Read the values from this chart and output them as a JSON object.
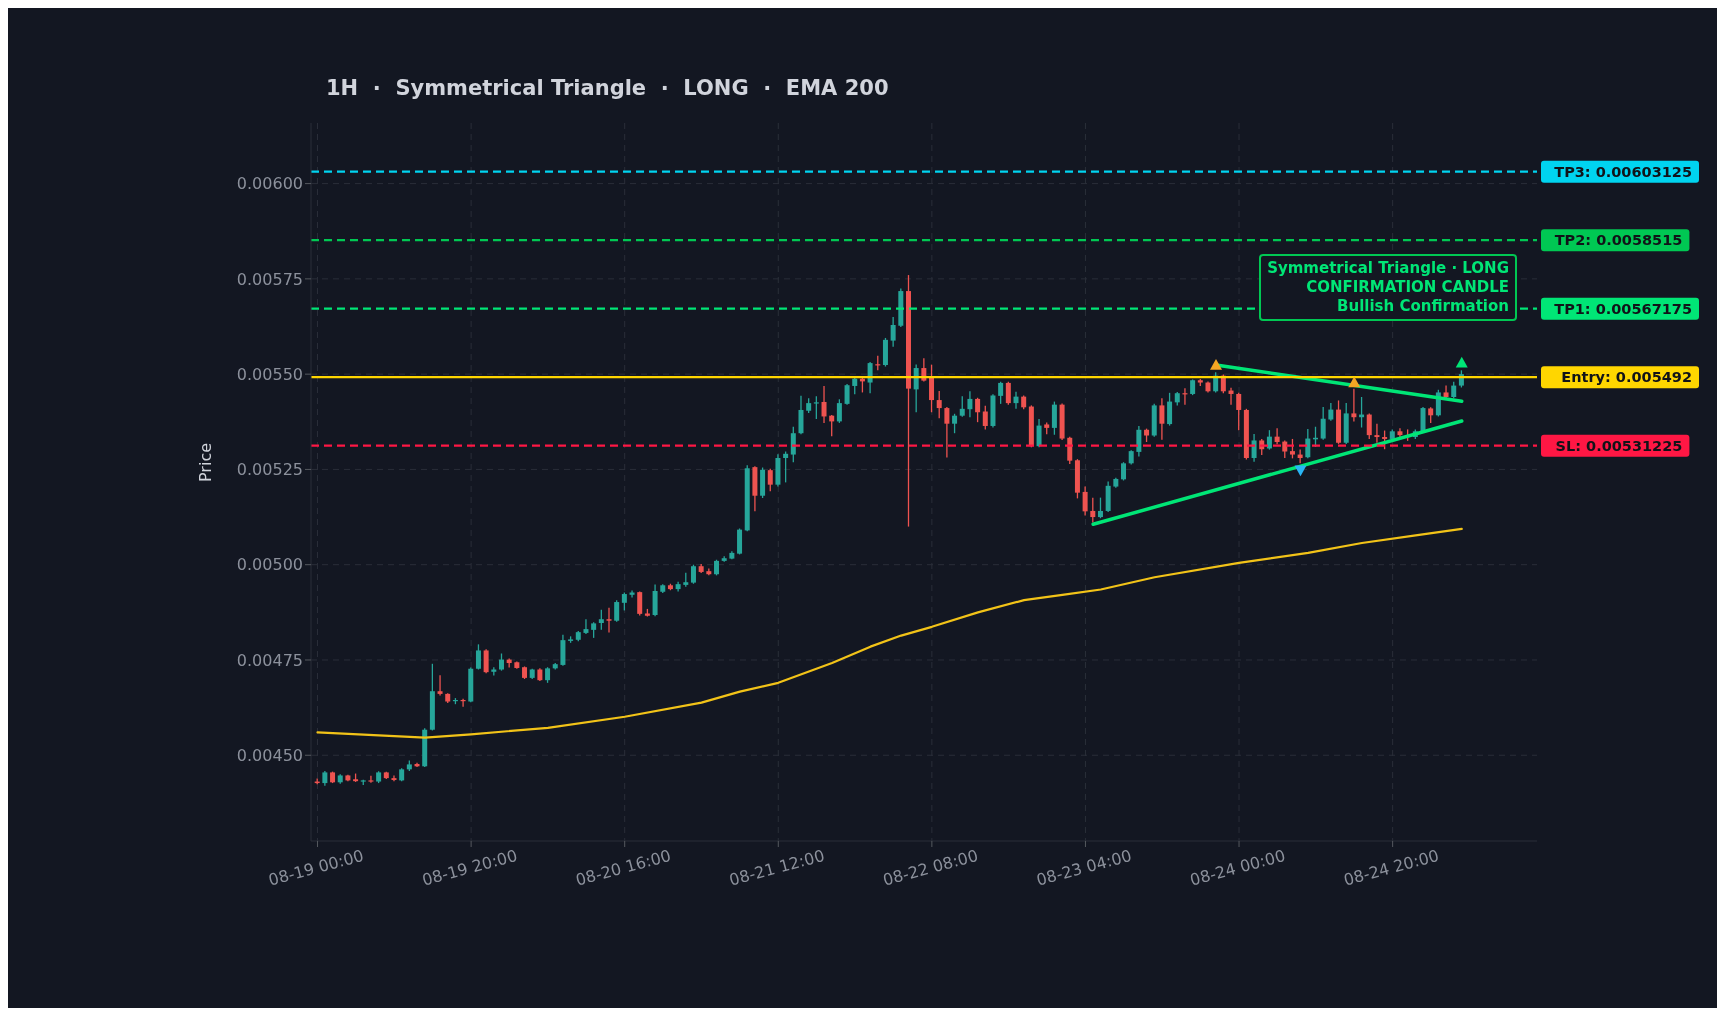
{
  "chart_data": {
    "type": "candlestick",
    "title": "1H  ·  Symmetrical Triangle  ·  LONG  ·  EMA 200",
    "ylabel": "Price",
    "x": [
      "--08-19T00:00",
      "--08-19T01:00",
      "--08-19T02:00",
      "--08-19T03:00",
      "--08-19T04:00",
      "--08-19T05:00",
      "--08-19T06:00",
      "--08-19T07:00",
      "--08-19T08:00",
      "--08-19T09:00",
      "--08-19T10:00",
      "--08-19T11:00",
      "--08-19T12:00",
      "--08-19T13:00",
      "--08-19T14:00",
      "--08-19T15:00",
      "--08-19T16:00",
      "--08-19T17:00",
      "--08-19T18:00",
      "--08-19T19:00",
      "--08-19T20:00",
      "--08-19T21:00",
      "--08-19T22:00",
      "--08-19T23:00",
      "--08-20T00:00",
      "--08-20T01:00",
      "--08-20T02:00",
      "--08-20T03:00",
      "--08-20T04:00",
      "--08-20T05:00",
      "--08-20T06:00",
      "--08-20T07:00",
      "--08-20T08:00",
      "--08-20T09:00",
      "--08-20T10:00",
      "--08-20T11:00",
      "--08-20T12:00",
      "--08-20T13:00",
      "--08-20T14:00",
      "--08-20T15:00",
      "--08-20T16:00",
      "--08-20T17:00",
      "--08-20T18:00",
      "--08-20T19:00",
      "--08-20T20:00",
      "--08-20T21:00",
      "--08-20T22:00",
      "--08-20T23:00",
      "--08-21T00:00",
      "--08-21T01:00",
      "--08-21T02:00",
      "--08-21T03:00",
      "--08-21T04:00",
      "--08-21T05:00",
      "--08-21T06:00",
      "--08-21T07:00",
      "--08-21T08:00",
      "--08-21T09:00",
      "--08-21T10:00",
      "--08-21T11:00",
      "--08-21T12:00",
      "--08-21T13:00",
      "--08-21T14:00",
      "--08-21T15:00",
      "--08-21T16:00",
      "--08-21T17:00",
      "--08-21T18:00",
      "--08-21T19:00",
      "--08-21T20:00",
      "--08-21T21:00",
      "--08-21T22:00",
      "--08-21T23:00",
      "--08-22T00:00",
      "--08-22T01:00",
      "--08-22T02:00",
      "--08-22T03:00",
      "--08-22T04:00",
      "--08-22T05:00",
      "--08-22T06:00",
      "--08-22T07:00",
      "--08-22T08:00",
      "--08-22T09:00",
      "--08-22T10:00",
      "--08-22T11:00",
      "--08-22T12:00",
      "--08-22T13:00",
      "--08-22T14:00",
      "--08-22T15:00",
      "--08-22T16:00",
      "--08-22T17:00",
      "--08-22T18:00",
      "--08-22T19:00",
      "--08-22T20:00",
      "--08-22T21:00",
      "--08-22T22:00",
      "--08-22T23:00",
      "--08-23T00:00",
      "--08-23T01:00",
      "--08-23T02:00",
      "--08-23T03:00",
      "--08-23T04:00",
      "--08-23T05:00",
      "--08-23T06:00",
      "--08-23T07:00",
      "--08-23T08:00",
      "--08-23T09:00",
      "--08-23T10:00",
      "--08-23T11:00",
      "--08-23T12:00",
      "--08-23T13:00",
      "--08-23T14:00",
      "--08-23T15:00",
      "--08-23T16:00",
      "--08-23T17:00",
      "--08-23T18:00",
      "--08-23T19:00",
      "--08-23T20:00",
      "--08-23T21:00",
      "--08-23T22:00",
      "--08-23T23:00",
      "--08-24T00:00",
      "--08-24T01:00",
      "--08-24T02:00",
      "--08-24T03:00",
      "--08-24T04:00",
      "--08-24T05:00",
      "--08-24T06:00",
      "--08-24T07:00",
      "--08-24T08:00",
      "--08-24T09:00",
      "--08-24T10:00",
      "--08-24T11:00",
      "--08-24T12:00",
      "--08-24T13:00",
      "--08-24T14:00",
      "--08-24T15:00",
      "--08-24T16:00",
      "--08-24T17:00",
      "--08-24T18:00",
      "--08-24T19:00",
      "--08-24T20:00",
      "--08-24T21:00",
      "--08-24T22:00",
      "--08-24T23:00",
      "--08-25T00:00",
      "--08-25T01:00",
      "--08-25T02:00",
      "--08-25T03:00",
      "--08-25T04:00",
      "--08-25T05:00"
    ],
    "ohlc": [
      [
        0.004431,
        0.004439,
        0.004424,
        0.004427
      ],
      [
        0.004427,
        0.004459,
        0.00442,
        0.004455
      ],
      [
        0.004455,
        0.004457,
        0.004427,
        0.004429
      ],
      [
        0.004429,
        0.00445,
        0.004425,
        0.004447
      ],
      [
        0.004447,
        0.004449,
        0.004432,
        0.004434
      ],
      [
        0.004437,
        0.004452,
        0.00443,
        0.004432
      ],
      [
        0.004432,
        0.004436,
        0.004422,
        0.004434
      ],
      [
        0.004434,
        0.004446,
        0.004428,
        0.004431
      ],
      [
        0.004431,
        0.004458,
        0.004427,
        0.004455
      ],
      [
        0.004455,
        0.004457,
        0.004438,
        0.00444
      ],
      [
        0.00444,
        0.004447,
        0.004432,
        0.004435
      ],
      [
        0.004434,
        0.004466,
        0.004432,
        0.004463
      ],
      [
        0.004463,
        0.004486,
        0.004459,
        0.004476
      ],
      [
        0.004477,
        0.00448,
        0.004469,
        0.004471
      ],
      [
        0.004471,
        0.004571,
        0.004469,
        0.004567
      ],
      [
        0.004567,
        0.00474,
        0.004565,
        0.004668
      ],
      [
        0.004668,
        0.00471,
        0.004657,
        0.004661
      ],
      [
        0.004661,
        0.004663,
        0.004637,
        0.004641
      ],
      [
        0.004643,
        0.00465,
        0.004634,
        0.004645
      ],
      [
        0.004645,
        0.004648,
        0.004627,
        0.004642
      ],
      [
        0.004641,
        0.00473,
        0.004639,
        0.004727
      ],
      [
        0.004727,
        0.004791,
        0.004725,
        0.004775
      ],
      [
        0.004775,
        0.004778,
        0.004715,
        0.004718
      ],
      [
        0.004719,
        0.004731,
        0.004709,
        0.004725
      ],
      [
        0.004725,
        0.004767,
        0.004722,
        0.004751
      ],
      [
        0.004751,
        0.004754,
        0.00473,
        0.004742
      ],
      [
        0.004744,
        0.004746,
        0.004727,
        0.004729
      ],
      [
        0.004731,
        0.004733,
        0.0047,
        0.004703
      ],
      [
        0.004703,
        0.004727,
        0.0047,
        0.004725
      ],
      [
        0.004725,
        0.004728,
        0.004695,
        0.004697
      ],
      [
        0.004697,
        0.004731,
        0.00469,
        0.004728
      ],
      [
        0.004728,
        0.004742,
        0.004725,
        0.004739
      ],
      [
        0.004737,
        0.004816,
        0.004735,
        0.004802
      ],
      [
        0.0048,
        0.004812,
        0.004795,
        0.004804
      ],
      [
        0.004803,
        0.004826,
        0.004799,
        0.004823
      ],
      [
        0.004821,
        0.004857,
        0.004818,
        0.004831
      ],
      [
        0.004829,
        0.004849,
        0.004808,
        0.004846
      ],
      [
        0.004847,
        0.004882,
        0.004829,
        0.004857
      ],
      [
        0.004857,
        0.004887,
        0.004822,
        0.004853
      ],
      [
        0.004853,
        0.004907,
        0.00485,
        0.004902
      ],
      [
        0.0049,
        0.004927,
        0.00488,
        0.004923
      ],
      [
        0.004921,
        0.004932,
        0.004914,
        0.004927
      ],
      [
        0.004928,
        0.00493,
        0.004867,
        0.004871
      ],
      [
        0.004872,
        0.004884,
        0.004864,
        0.004866
      ],
      [
        0.004868,
        0.004948,
        0.004865,
        0.004931
      ],
      [
        0.004929,
        0.004949,
        0.004926,
        0.004946
      ],
      [
        0.004946,
        0.00495,
        0.004933,
        0.004936
      ],
      [
        0.004936,
        0.004955,
        0.00493,
        0.004949
      ],
      [
        0.004947,
        0.004979,
        0.004942,
        0.004954
      ],
      [
        0.004953,
        0.005,
        0.00495,
        0.004996
      ],
      [
        0.004996,
        0.005002,
        0.004978,
        0.004981
      ],
      [
        0.004983,
        0.00499,
        0.004972,
        0.004975
      ],
      [
        0.004975,
        0.005013,
        0.004972,
        0.00501
      ],
      [
        0.00501,
        0.005022,
        0.005008,
        0.005017
      ],
      [
        0.005016,
        0.005035,
        0.005014,
        0.005031
      ],
      [
        0.005029,
        0.005095,
        0.005027,
        0.005092
      ],
      [
        0.00509,
        0.005261,
        0.005088,
        0.005253
      ],
      [
        0.005256,
        0.005258,
        0.00514,
        0.005181
      ],
      [
        0.005181,
        0.005255,
        0.005175,
        0.005249
      ],
      [
        0.005248,
        0.005252,
        0.005193,
        0.00521
      ],
      [
        0.00521,
        0.00529,
        0.005205,
        0.00528
      ],
      [
        0.00528,
        0.005297,
        0.005216,
        0.005291
      ],
      [
        0.005289,
        0.005362,
        0.005269,
        0.005345
      ],
      [
        0.005345,
        0.005443,
        0.005342,
        0.005406
      ],
      [
        0.005404,
        0.005437,
        0.005398,
        0.005424
      ],
      [
        0.005424,
        0.005442,
        0.005382,
        0.005426
      ],
      [
        0.005427,
        0.005469,
        0.005372,
        0.005389
      ],
      [
        0.005391,
        0.005393,
        0.005337,
        0.005376
      ],
      [
        0.005376,
        0.005434,
        0.005372,
        0.005424
      ],
      [
        0.005422,
        0.005474,
        0.00542,
        0.005471
      ],
      [
        0.005469,
        0.00549,
        0.005447,
        0.005488
      ],
      [
        0.005488,
        0.005491,
        0.005452,
        0.005481
      ],
      [
        0.005478,
        0.005532,
        0.00545,
        0.005529
      ],
      [
        0.005526,
        0.005548,
        0.00551,
        0.005524
      ],
      [
        0.005524,
        0.005595,
        0.00552,
        0.00559
      ],
      [
        0.005588,
        0.00565,
        0.005572,
        0.005629
      ],
      [
        0.005627,
        0.005725,
        0.005624,
        0.005718
      ],
      [
        0.005718,
        0.00576,
        0.0051,
        0.005462
      ],
      [
        0.00546,
        0.005525,
        0.0054,
        0.005516
      ],
      [
        0.005516,
        0.005542,
        0.005481,
        0.005483
      ],
      [
        0.005495,
        0.005525,
        0.0054,
        0.005432
      ],
      [
        0.005432,
        0.005456,
        0.005384,
        0.005411
      ],
      [
        0.005411,
        0.005414,
        0.005281,
        0.00537
      ],
      [
        0.00537,
        0.005396,
        0.005345,
        0.005391
      ],
      [
        0.005391,
        0.005442,
        0.005388,
        0.005409
      ],
      [
        0.005408,
        0.005455,
        0.005387,
        0.005435
      ],
      [
        0.005435,
        0.005438,
        0.005374,
        0.0054
      ],
      [
        0.005402,
        0.005417,
        0.005355,
        0.005364
      ],
      [
        0.005364,
        0.005447,
        0.00536,
        0.005444
      ],
      [
        0.005443,
        0.00548,
        0.005422,
        0.005477
      ],
      [
        0.005477,
        0.00548,
        0.00542,
        0.005424
      ],
      [
        0.005424,
        0.005454,
        0.005409,
        0.005441
      ],
      [
        0.005441,
        0.005444,
        0.005408,
        0.005413
      ],
      [
        0.005415,
        0.005418,
        0.005308,
        0.005311
      ],
      [
        0.005311,
        0.005382,
        0.005308,
        0.005365
      ],
      [
        0.005368,
        0.005373,
        0.005342,
        0.005359
      ],
      [
        0.005359,
        0.005428,
        0.005341,
        0.00542
      ],
      [
        0.00542,
        0.005423,
        0.005327,
        0.005331
      ],
      [
        0.005333,
        0.005336,
        0.005264,
        0.005273
      ],
      [
        0.005274,
        0.005277,
        0.005174,
        0.005189
      ],
      [
        0.005191,
        0.005205,
        0.005129,
        0.00514
      ],
      [
        0.005141,
        0.005176,
        0.005111,
        0.005125
      ],
      [
        0.005125,
        0.005176,
        0.005122,
        0.005141
      ],
      [
        0.005141,
        0.005218,
        0.005138,
        0.005207
      ],
      [
        0.005205,
        0.005228,
        0.005202,
        0.005225
      ],
      [
        0.005224,
        0.005269,
        0.005221,
        0.005266
      ],
      [
        0.005266,
        0.0053,
        0.005263,
        0.005298
      ],
      [
        0.005296,
        0.005364,
        0.005284,
        0.005354
      ],
      [
        0.005354,
        0.005357,
        0.005322,
        0.005339
      ],
      [
        0.005339,
        0.005422,
        0.005336,
        0.005418
      ],
      [
        0.005418,
        0.005437,
        0.005328,
        0.00537
      ],
      [
        0.005369,
        0.005451,
        0.005365,
        0.005428
      ],
      [
        0.005426,
        0.005453,
        0.005418,
        0.00545
      ],
      [
        0.00545,
        0.005463,
        0.00542,
        0.005448
      ],
      [
        0.005448,
        0.005486,
        0.005445,
        0.005484
      ],
      [
        0.005484,
        0.005487,
        0.005469,
        0.005478
      ],
      [
        0.005478,
        0.005481,
        0.005452,
        0.005455
      ],
      [
        0.005455,
        0.005505,
        0.005452,
        0.005496
      ],
      [
        0.005496,
        0.005499,
        0.00545,
        0.005455
      ],
      [
        0.005457,
        0.005464,
        0.00542,
        0.005448
      ],
      [
        0.005448,
        0.005451,
        0.005353,
        0.005406
      ],
      [
        0.005406,
        0.005409,
        0.005276,
        0.00528
      ],
      [
        0.00528,
        0.005343,
        0.00527,
        0.005326
      ],
      [
        0.005326,
        0.00533,
        0.005288,
        0.005303
      ],
      [
        0.005305,
        0.005353,
        0.005302,
        0.005336
      ],
      [
        0.005336,
        0.005358,
        0.005316,
        0.005322
      ],
      [
        0.005323,
        0.005326,
        0.00528,
        0.005297
      ],
      [
        0.005298,
        0.00533,
        0.005279,
        0.005289
      ],
      [
        0.005289,
        0.005302,
        0.005266,
        0.00528
      ],
      [
        0.005282,
        0.005356,
        0.005279,
        0.005331
      ],
      [
        0.005329,
        0.005362,
        0.005309,
        0.005333
      ],
      [
        0.005331,
        0.005414,
        0.005328,
        0.005383
      ],
      [
        0.005381,
        0.005424,
        0.005378,
        0.005407
      ],
      [
        0.005407,
        0.005431,
        0.005317,
        0.00532
      ],
      [
        0.00532,
        0.005424,
        0.005317,
        0.005397
      ],
      [
        0.005397,
        0.005462,
        0.005376,
        0.005387
      ],
      [
        0.005387,
        0.00544,
        0.00536,
        0.005394
      ],
      [
        0.005394,
        0.005397,
        0.00533,
        0.00534
      ],
      [
        0.00534,
        0.00537,
        0.00532,
        0.005335
      ],
      [
        0.005335,
        0.005352,
        0.005303,
        0.00533
      ],
      [
        0.00533,
        0.005355,
        0.005325,
        0.00535
      ],
      [
        0.00535,
        0.005358,
        0.00533,
        0.00534
      ],
      [
        0.00534,
        0.005355,
        0.005325,
        0.005335
      ],
      [
        0.005335,
        0.005355,
        0.00533,
        0.00535
      ],
      [
        0.00535,
        0.005414,
        0.005347,
        0.005411
      ],
      [
        0.00541,
        0.005413,
        0.005372,
        0.005392
      ],
      [
        0.005392,
        0.005459,
        0.005389,
        0.005452
      ],
      [
        0.005452,
        0.00547,
        0.005435,
        0.00544
      ],
      [
        0.00544,
        0.00548,
        0.005437,
        0.00547
      ],
      [
        0.00547,
        0.00551,
        0.005465,
        0.0055
      ]
    ],
    "colors": [
      "#ef5350",
      "#26a69a",
      "#ef5350",
      "#26a69a",
      "#ef5350",
      "#ef5350",
      "#26a69a",
      "#ef5350",
      "#26a69a",
      "#ef5350",
      "#ef5350",
      "#26a69a",
      "#26a69a",
      "#ef5350",
      "#26a69a",
      "#26a69a",
      "#ef5350",
      "#ef5350",
      "#26a69a",
      "#ef5350",
      "#26a69a",
      "#26a69a",
      "#ef5350",
      "#26a69a",
      "#26a69a",
      "#ef5350",
      "#ef5350",
      "#ef5350",
      "#26a69a",
      "#ef5350",
      "#26a69a",
      "#26a69a",
      "#26a69a",
      "#26a69a",
      "#26a69a",
      "#26a69a",
      "#26a69a",
      "#26a69a",
      "#ef5350",
      "#26a69a",
      "#26a69a",
      "#26a69a",
      "#ef5350",
      "#ef5350",
      "#26a69a",
      "#26a69a",
      "#ef5350",
      "#26a69a",
      "#26a69a",
      "#26a69a",
      "#ef5350",
      "#ef5350",
      "#26a69a",
      "#26a69a",
      "#26a69a",
      "#26a69a",
      "#26a69a",
      "#ef5350",
      "#26a69a",
      "#ef5350",
      "#26a69a",
      "#26a69a",
      "#26a69a",
      "#26a69a",
      "#26a69a",
      "#26a69a",
      "#ef5350",
      "#ef5350",
      "#26a69a",
      "#26a69a",
      "#26a69a",
      "#ef5350",
      "#26a69a",
      "#ef5350",
      "#26a69a",
      "#26a69a",
      "#26a69a",
      "#ef5350",
      "#26a69a",
      "#ef5350",
      "#ef5350",
      "#ef5350",
      "#ef5350",
      "#26a69a",
      "#26a69a",
      "#26a69a",
      "#ef5350",
      "#ef5350",
      "#26a69a",
      "#26a69a",
      "#ef5350",
      "#26a69a",
      "#ef5350",
      "#ef5350",
      "#26a69a",
      "#ef5350",
      "#26a69a",
      "#ef5350",
      "#ef5350",
      "#ef5350",
      "#ef5350",
      "#ef5350",
      "#26a69a",
      "#26a69a",
      "#26a69a",
      "#26a69a",
      "#26a69a",
      "#26a69a",
      "#ef5350",
      "#26a69a",
      "#ef5350",
      "#26a69a",
      "#26a69a",
      "#ef5350",
      "#26a69a",
      "#ef5350",
      "#ef5350",
      "#26a69a",
      "#ef5350",
      "#ef5350",
      "#ef5350",
      "#ef5350",
      "#26a69a",
      "#ef5350",
      "#26a69a",
      "#ef5350",
      "#ef5350",
      "#ef5350",
      "#ef5350",
      "#26a69a",
      "#26a69a",
      "#26a69a",
      "#26a69a",
      "#ef5350",
      "#26a69a",
      "#ef5350",
      "#26a69a",
      "#ef5350",
      "#ef5350",
      "#ef5350",
      "#26a69a",
      "#ef5350",
      "#ef5350",
      "#26a69a",
      "#26a69a",
      "#ef5350",
      "#26a69a",
      "#ef5350",
      "#26a69a",
      "#26a69a"
    ],
    "series": [
      {
        "type": "line",
        "color": "#f2c318",
        "x": [
          "--08-19T00:00",
          "--08-19T14:00",
          "--08-19T20:00",
          "--08-20T06:00",
          "--08-20T16:00",
          "--08-21T02:00",
          "--08-21T07:00",
          "--08-21T12:00",
          "--08-21T19:00",
          "--08-22T00:00",
          "--08-22T04:00",
          "--08-22T08:00",
          "--08-22T14:00",
          "--08-22T20:00",
          "--08-23T01:00",
          "--08-23T06:00",
          "--08-23T13:00",
          "--08-24T00:00",
          "--08-24T09:00",
          "--08-24T16:00",
          "--08-24T23:00",
          "--08-25T05:00"
        ],
        "values": [
          0.00456,
          0.004546,
          0.004555,
          0.004572,
          0.004601,
          0.004638,
          0.004667,
          0.00469,
          0.004742,
          0.004785,
          0.004814,
          0.004837,
          0.004875,
          0.004907,
          0.004921,
          0.004935,
          0.004967,
          0.005005,
          0.005031,
          0.005057,
          0.005077,
          0.005094
        ]
      },
      {
        "type": "line",
        "color": "#00e676",
        "x": [
          "--08-23T21:00",
          "--08-25T05:00"
        ],
        "values": [
          0.005524,
          0.005429
        ]
      },
      {
        "type": "line",
        "color": "#00e676",
        "x": [
          "--08-23T05:00",
          "--08-25T05:00"
        ],
        "values": [
          0.005106,
          0.005377
        ]
      },
      {
        "type": "scatter",
        "color": "#f5a623",
        "marker": "triangle",
        "x": [
          "--08-23T21:00",
          "--08-24T15:00"
        ],
        "values": [
          0.005524,
          0.005478
        ]
      },
      {
        "type": "scatter",
        "color": "#29b6f6",
        "marker": "triangle-down",
        "x": [
          "--08-24T08:00"
        ],
        "values": [
          0.005248
        ]
      },
      {
        "type": "scatter",
        "color": "#00e676",
        "marker": "triangle",
        "x": [
          "--08-25T05:00"
        ],
        "values": [
          0.00553
        ]
      }
    ],
    "ref_lines": [
      {
        "axis": "y",
        "value": 0.00603125,
        "label": "TP3: 0.00603125",
        "color": "#00d4f0",
        "line_style": "dashed"
      },
      {
        "axis": "y",
        "value": 0.0058515,
        "label": "TP2: 0.0058515",
        "color": "#00c853",
        "line_style": "dashed"
      },
      {
        "axis": "y",
        "value": 0.00567175,
        "label": "TP1: 0.00567175",
        "color": "#00e676",
        "line_style": "dashed"
      },
      {
        "axis": "y",
        "value": 0.005492,
        "label": "Entry: 0.005492",
        "color": "#ffd600",
        "line_style": "solid"
      },
      {
        "axis": "y",
        "value": 0.00531225,
        "label": "SL: 0.00531225",
        "color": "#ff1744",
        "line_style": "dashed"
      }
    ],
    "annotations": [
      "Symmetrical Triangle · LONG",
      "CONFIRMATION CANDLE",
      "Bullish Confirmation"
    ],
    "xlim": [
      "--08-18T23:09",
      "--08-25T14:48"
    ],
    "xticks": [
      {
        "value": "--08-19T00:00",
        "label": "08-19 00:00"
      },
      {
        "value": "--08-19T20:00",
        "label": "08-19 20:00"
      },
      {
        "value": "--08-20T16:00",
        "label": "08-20 16:00"
      },
      {
        "value": "--08-21T12:00",
        "label": "08-21 12:00"
      },
      {
        "value": "--08-22T08:00",
        "label": "08-22 08:00"
      },
      {
        "value": "--08-23T04:00",
        "label": "08-23 04:00"
      },
      {
        "value": "--08-24T00:00",
        "label": "08-24 00:00"
      },
      {
        "value": "--08-24T20:00",
        "label": "08-24 20:00"
      }
    ],
    "ylim": [
      0.004275,
      0.006159
    ],
    "yticks": [
      {
        "value": 0.0045,
        "label": "0.00450"
      },
      {
        "value": 0.00475,
        "label": "0.00475"
      },
      {
        "value": 0.005,
        "label": "0.00500"
      },
      {
        "value": 0.00525,
        "label": "0.00525"
      },
      {
        "value": 0.0055,
        "label": "0.00550"
      },
      {
        "value": 0.00575,
        "label": "0.00575"
      },
      {
        "value": 0.006,
        "label": "0.00600"
      }
    ],
    "grid": true
  }
}
